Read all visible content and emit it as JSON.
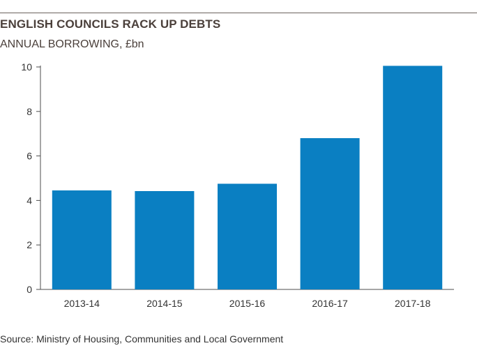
{
  "header": {
    "title": "ENGLISH COUNCILS RACK UP DEBTS",
    "subtitle": "ANNUAL BORROWING, £bn"
  },
  "footer": {
    "source": "Source: Ministry of Housing, Communities and Local Government"
  },
  "colors": {
    "bar": "#0a7fc2",
    "axis": "#4d4d4d",
    "text": "#4a3f3a"
  },
  "chart_data": {
    "type": "bar",
    "title": "ENGLISH COUNCILS RACK UP DEBTS",
    "subtitle": "ANNUAL BORROWING, £bn",
    "xlabel": "",
    "ylabel": "",
    "categories": [
      "2013-14",
      "2014-15",
      "2015-16",
      "2016-17",
      "2017-18"
    ],
    "values": [
      4.45,
      4.42,
      4.75,
      6.8,
      10.05
    ],
    "ylim": [
      0,
      10
    ],
    "yticks": [
      0,
      2,
      4,
      6,
      8,
      10
    ],
    "grid": false,
    "legend": "none"
  }
}
